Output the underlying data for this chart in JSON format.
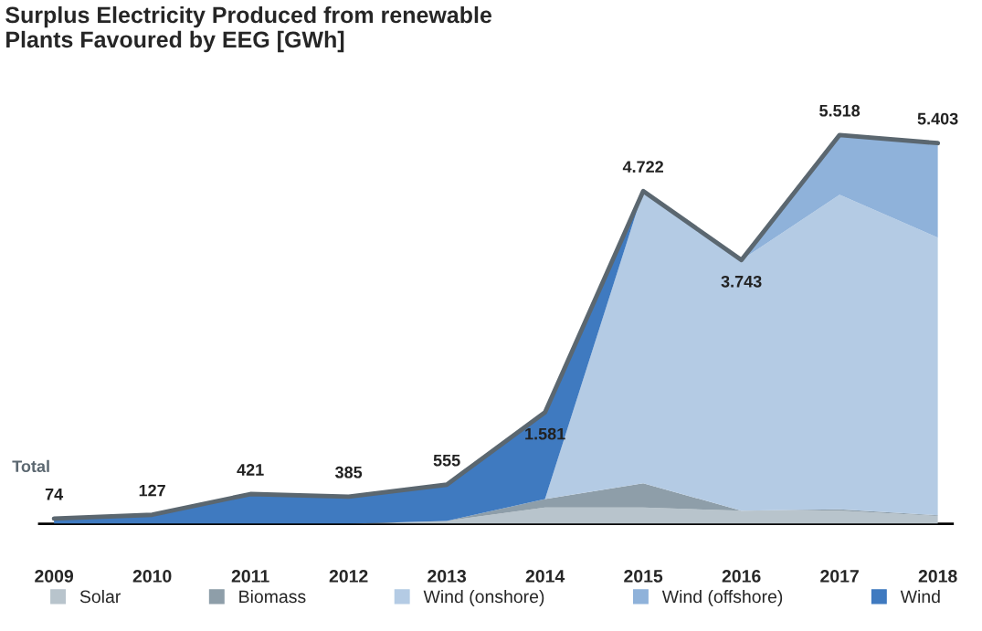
{
  "chart_data": {
    "type": "area",
    "stacked": true,
    "title": "Surplus Electricity Produced from renewable\nPlants Favoured by EEG [GWh]",
    "categories": [
      "2009",
      "2010",
      "2011",
      "2012",
      "2013",
      "2014",
      "2015",
      "2016",
      "2017",
      "2018"
    ],
    "series": [
      {
        "name": "Solar",
        "color": "#b8c4cc",
        "values": [
          null,
          null,
          null,
          0,
          40,
          230,
          230,
          185,
          185,
          110
        ]
      },
      {
        "name": "Biomass",
        "color": "#8e9ea9",
        "values": [
          null,
          null,
          null,
          null,
          0,
          120,
          345,
          0,
          20,
          10
        ]
      },
      {
        "name": "Wind (onshore)",
        "color": "#b4cbe4",
        "values": [
          null,
          null,
          null,
          null,
          null,
          0,
          4147,
          3558,
          4465,
          3942
        ]
      },
      {
        "name": "Wind (offshore)",
        "color": "#8fb2da",
        "values": [
          null,
          null,
          null,
          null,
          null,
          null,
          null,
          0,
          848,
          1341
        ]
      },
      {
        "name": "Wind",
        "color": "#3f7ac0",
        "values": [
          74,
          127,
          421,
          385,
          515,
          1231,
          0,
          null,
          null,
          null
        ]
      },
      {
        "name": "Total",
        "type": "line",
        "color": "#5b6770",
        "values": [
          74,
          127,
          421,
          385,
          555,
          1581,
          4722,
          3743,
          5518,
          5403
        ],
        "value_labels": [
          "74",
          "127",
          "421",
          "385",
          "555",
          "1.581",
          "4.722",
          "3.743",
          "5.518",
          "5.403"
        ]
      }
    ],
    "legend": "bottom",
    "grid": false
  }
}
